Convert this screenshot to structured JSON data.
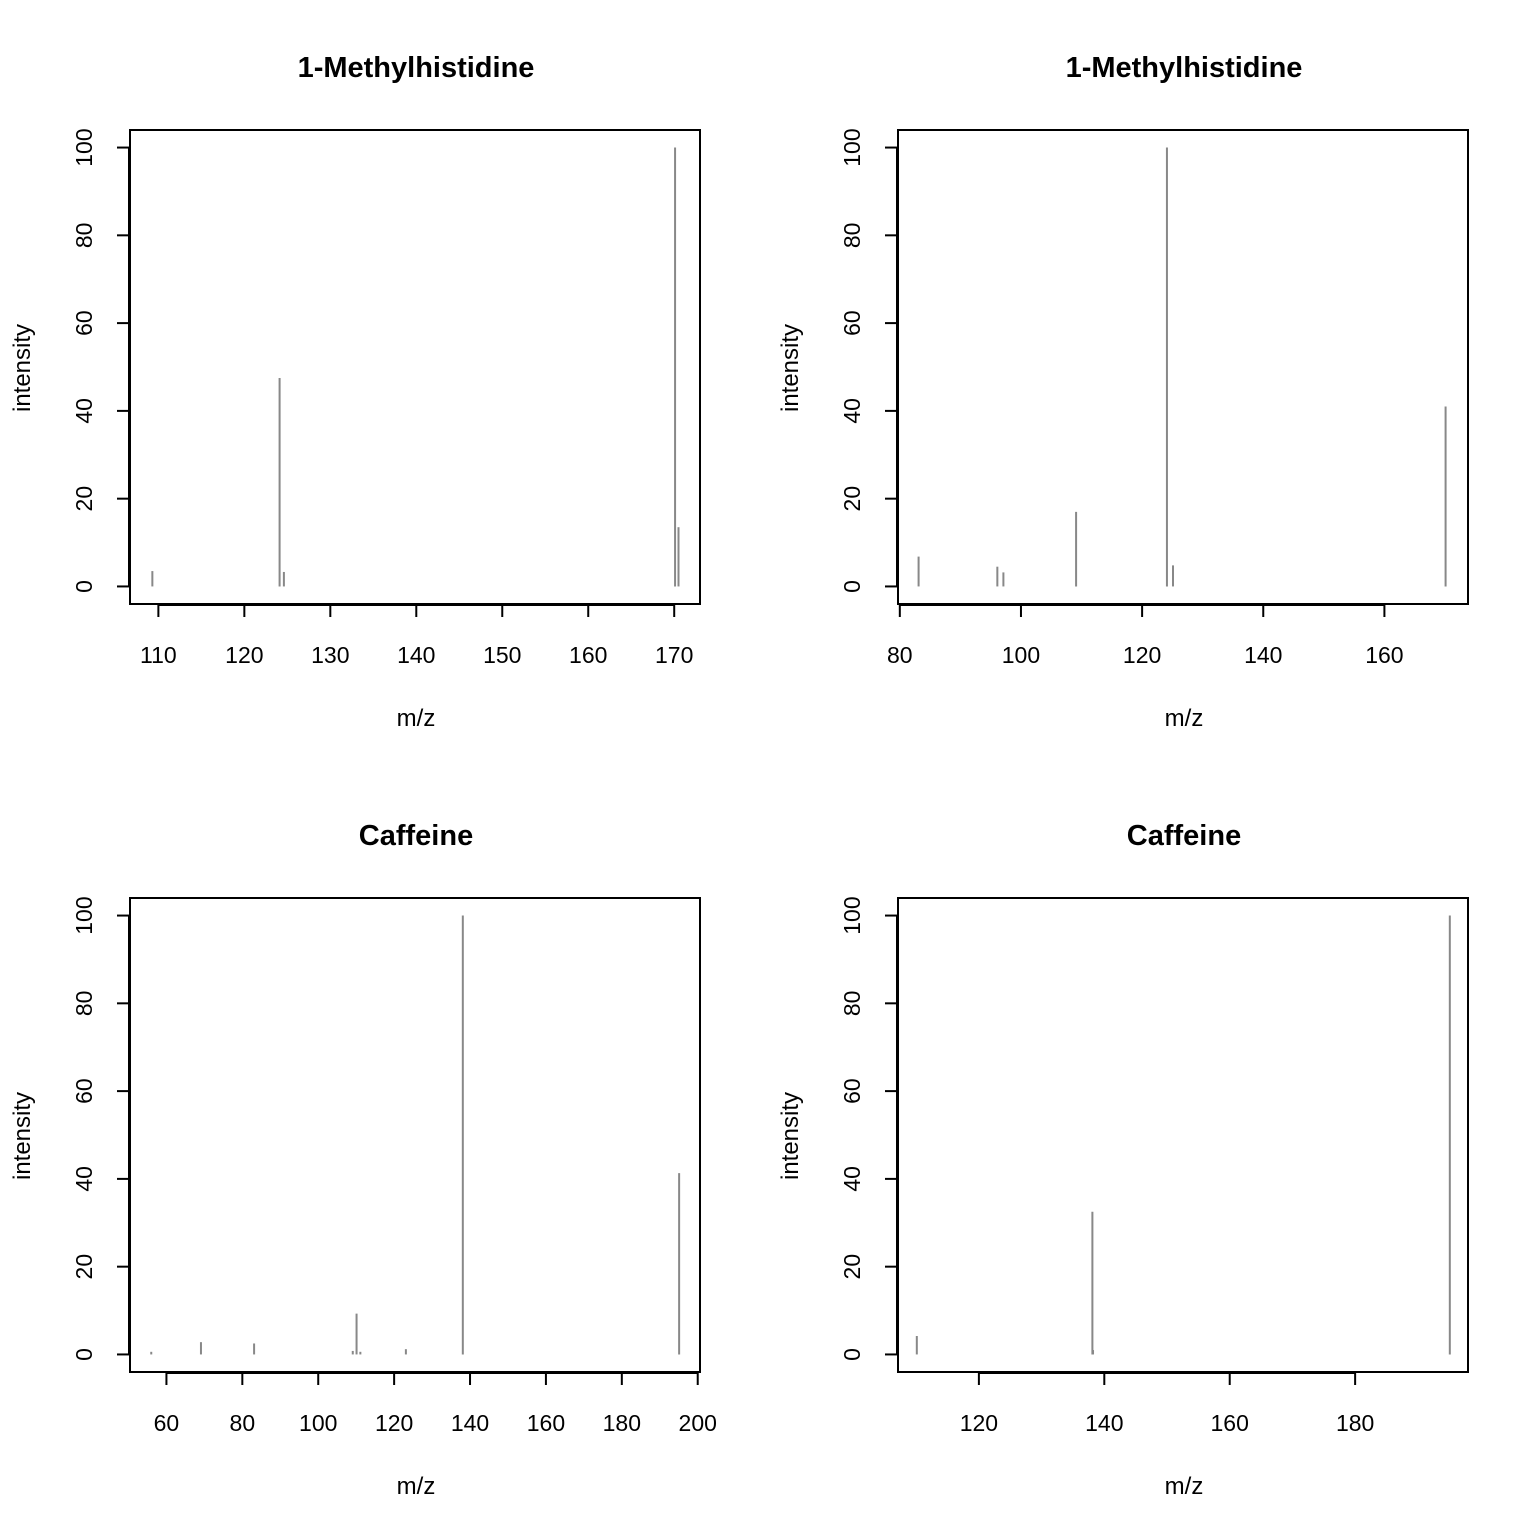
{
  "colors": {
    "peak": "#888888",
    "axis": "#000000",
    "background": "#ffffff"
  },
  "chart_data": [
    {
      "type": "bar",
      "subtype": "spectrum",
      "title": "1-Methylhistidine",
      "xlabel": "m/z",
      "ylabel": "intensity",
      "xlim": [
        106.7,
        173.0
      ],
      "ylim": [
        -4,
        104
      ],
      "xticks": [
        110,
        120,
        130,
        140,
        150,
        160,
        170
      ],
      "yticks": [
        0,
        20,
        40,
        60,
        80,
        100
      ],
      "grid": false,
      "peaks": [
        {
          "mz": 109.3,
          "intensity": 3.5
        },
        {
          "mz": 124.1,
          "intensity": 47.5
        },
        {
          "mz": 124.6,
          "intensity": 3.3
        },
        {
          "mz": 170.1,
          "intensity": 100
        },
        {
          "mz": 170.5,
          "intensity": 13.5
        }
      ]
    },
    {
      "type": "bar",
      "subtype": "spectrum",
      "title": "1-Methylhistidine",
      "xlabel": "m/z",
      "ylabel": "intensity",
      "xlim": [
        79.7,
        173.8
      ],
      "ylim": [
        -4,
        104
      ],
      "xticks": [
        80,
        100,
        120,
        140,
        160
      ],
      "yticks": [
        0,
        20,
        40,
        60,
        80,
        100
      ],
      "grid": false,
      "peaks": [
        {
          "mz": 83.1,
          "intensity": 6.8
        },
        {
          "mz": 96.1,
          "intensity": 4.5
        },
        {
          "mz": 97.1,
          "intensity": 3.2
        },
        {
          "mz": 109.1,
          "intensity": 17.0
        },
        {
          "mz": 124.1,
          "intensity": 100
        },
        {
          "mz": 125.1,
          "intensity": 4.8
        },
        {
          "mz": 170.1,
          "intensity": 41.0
        }
      ]
    },
    {
      "type": "bar",
      "subtype": "spectrum",
      "title": "Caffeine",
      "xlabel": "m/z",
      "ylabel": "intensity",
      "xlim": [
        50.4,
        200.6
      ],
      "ylim": [
        -4,
        104
      ],
      "xticks": [
        60,
        80,
        100,
        120,
        140,
        160,
        180,
        200
      ],
      "yticks": [
        0,
        20,
        40,
        60,
        80,
        100
      ],
      "grid": false,
      "peaks": [
        {
          "mz": 56.0,
          "intensity": 0.6
        },
        {
          "mz": 69.1,
          "intensity": 2.8
        },
        {
          "mz": 83.1,
          "intensity": 2.5
        },
        {
          "mz": 109.1,
          "intensity": 0.8
        },
        {
          "mz": 110.1,
          "intensity": 9.3
        },
        {
          "mz": 111.1,
          "intensity": 0.6
        },
        {
          "mz": 123.1,
          "intensity": 1.2
        },
        {
          "mz": 138.1,
          "intensity": 100
        },
        {
          "mz": 195.1,
          "intensity": 41.3
        }
      ]
    },
    {
      "type": "bar",
      "subtype": "spectrum",
      "title": "Caffeine",
      "xlabel": "m/z",
      "ylabel": "intensity",
      "xlim": [
        107.1,
        198.0
      ],
      "ylim": [
        -4,
        104
      ],
      "xticks": [
        120,
        140,
        160,
        180
      ],
      "yticks": [
        0,
        20,
        40,
        60,
        80,
        100
      ],
      "grid": false,
      "peaks": [
        {
          "mz": 110.1,
          "intensity": 4.2
        },
        {
          "mz": 138.1,
          "intensity": 32.5
        },
        {
          "mz": 138.2,
          "intensity": 1.0
        },
        {
          "mz": 195.1,
          "intensity": 100
        }
      ]
    }
  ]
}
